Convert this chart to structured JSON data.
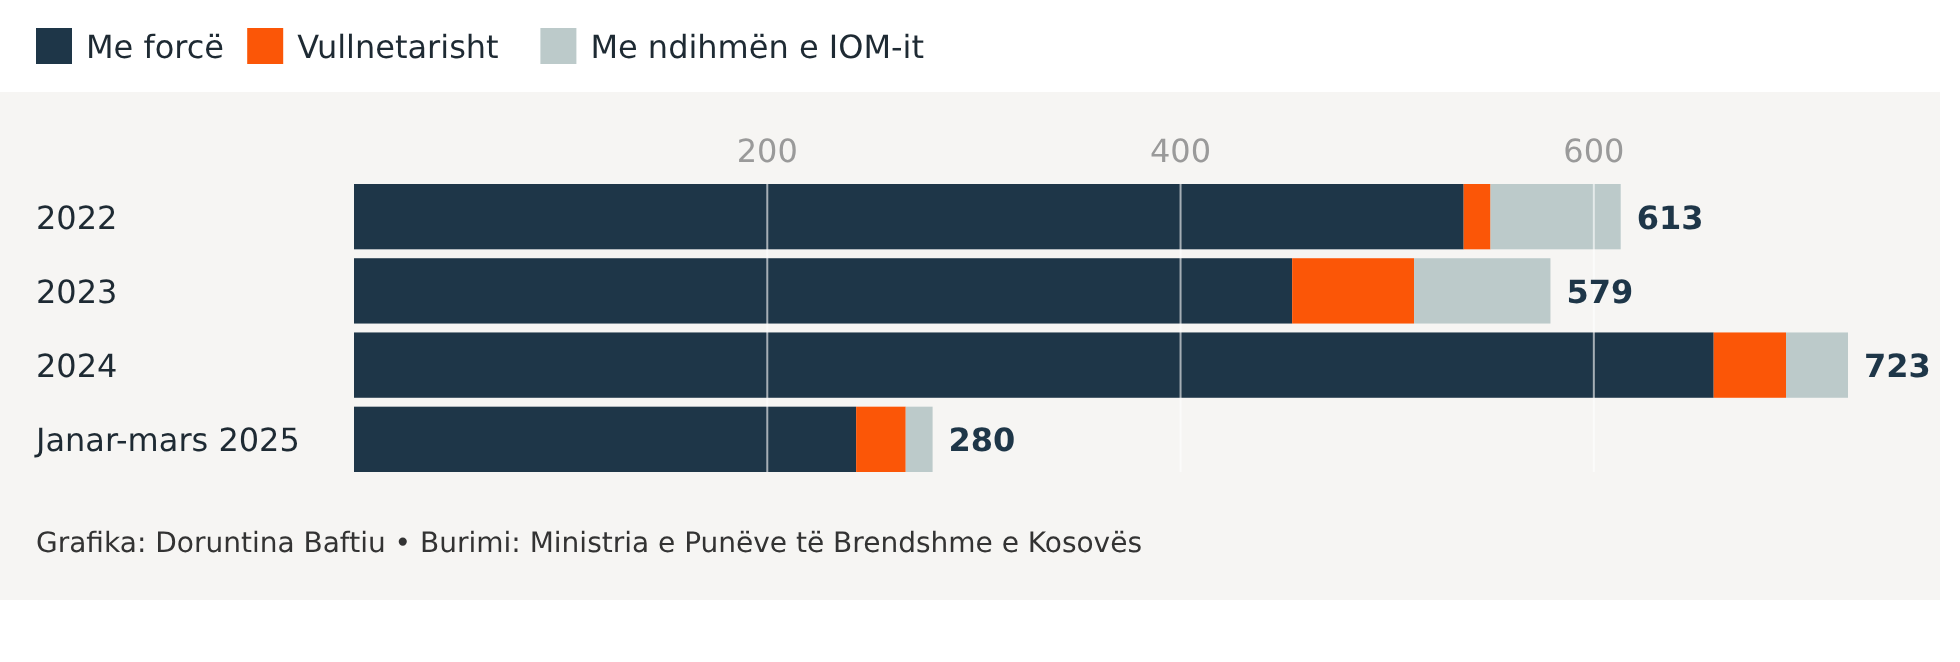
{
  "chart_data": {
    "type": "bar",
    "orientation": "horizontal",
    "stacked": true,
    "categories": [
      "2022",
      "2023",
      "2024",
      "Janar-mars 2025"
    ],
    "series": [
      {
        "name": "Me forcë",
        "color": "#1e3648",
        "values": [
          537,
          454,
          658,
          243
        ]
      },
      {
        "name": "Vullnetarisht",
        "color": "#fb5607",
        "values": [
          13,
          59,
          35,
          24
        ]
      },
      {
        "name": "Me ndihmën e IOM-it",
        "color": "#bccaca",
        "values": [
          63,
          66,
          30,
          13
        ]
      }
    ],
    "totals": [
      "613",
      "579",
      "723",
      "280"
    ],
    "xlim": [
      0,
      723
    ],
    "xticks": [
      200,
      400,
      600
    ],
    "grid": "x",
    "legend": "top left",
    "annotations": [
      "Grafika: Doruntina Baftiu • Burimi: Ministria e Punëve të Brendshme e Kosovës"
    ]
  }
}
